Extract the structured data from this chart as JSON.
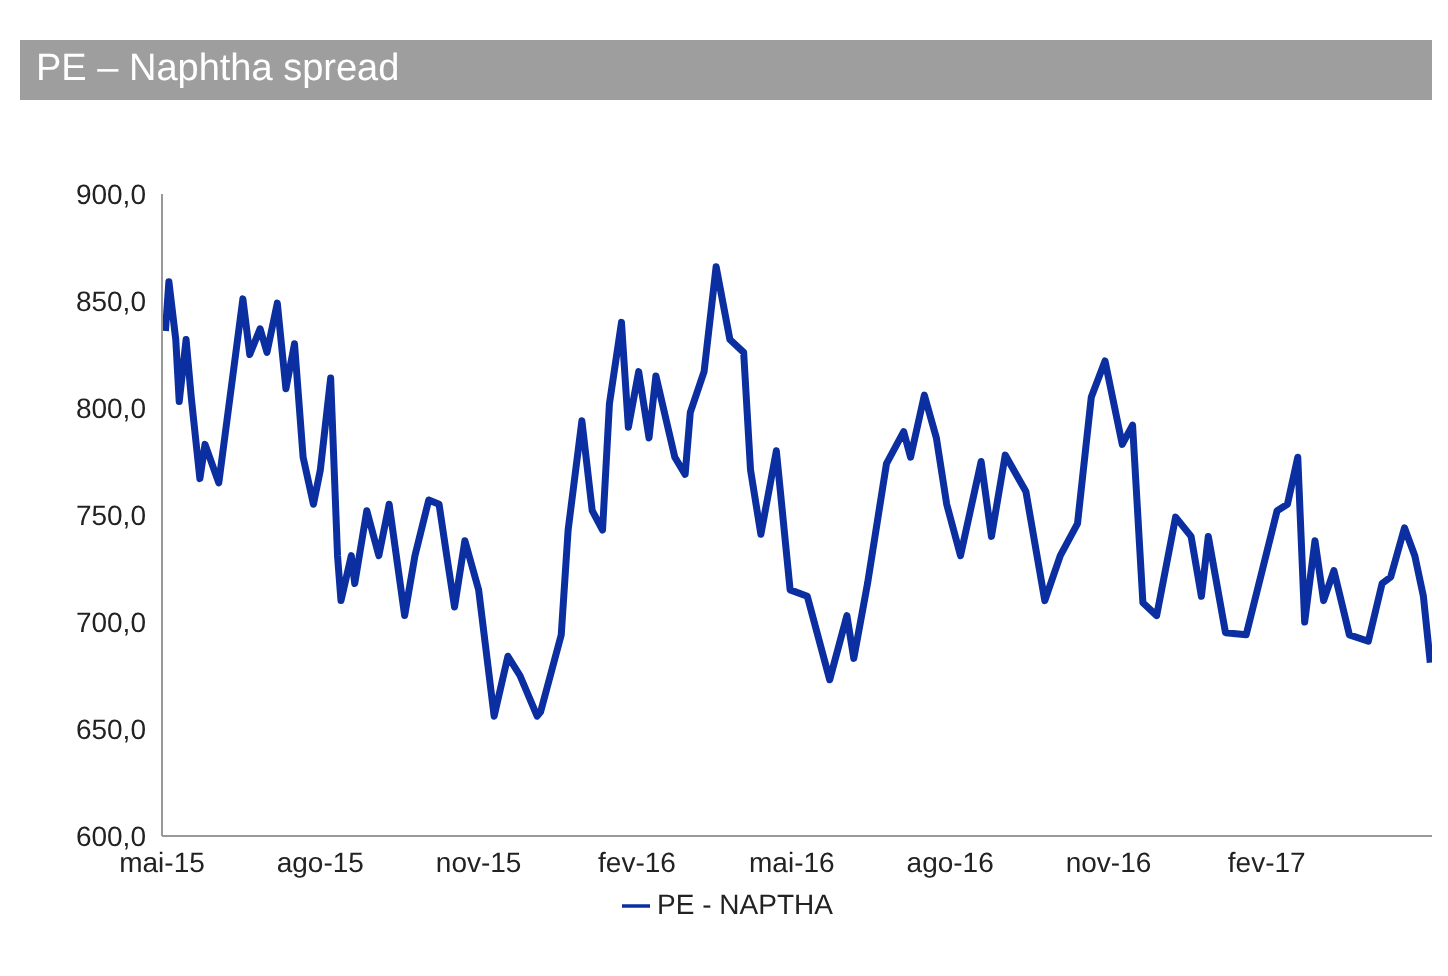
{
  "chart_data": {
    "type": "line",
    "title": "PE – Naphtha spread",
    "x": [
      "2015-05-03",
      "2015-05-05",
      "2015-05-09",
      "2015-05-11",
      "2015-05-15",
      "2015-05-18",
      "2015-05-23",
      "2015-05-26",
      "2015-06-03",
      "2015-06-17",
      "2015-06-21",
      "2015-06-27",
      "2015-07-01",
      "2015-07-07",
      "2015-07-12",
      "2015-07-17",
      "2015-07-22",
      "2015-07-28",
      "2015-08-01",
      "2015-08-07",
      "2015-08-11",
      "2015-08-13",
      "2015-08-19",
      "2015-08-21",
      "2015-08-28",
      "2015-09-04",
      "2015-09-10",
      "2015-09-19",
      "2015-09-25",
      "2015-10-03",
      "2015-10-09",
      "2015-10-14",
      "2015-10-18",
      "2015-10-24",
      "2015-11-01",
      "2015-11-10",
      "2015-11-18",
      "2015-11-25",
      "2015-12-05",
      "2015-12-07",
      "2015-12-19",
      "2015-12-23",
      "2015-12-31",
      "2016-01-06",
      "2016-01-12",
      "2016-01-16",
      "2016-01-23",
      "2016-01-27",
      "2016-02-02",
      "2016-02-08",
      "2016-02-12",
      "2016-02-23",
      "2016-02-29",
      "2016-03-03",
      "2016-03-11",
      "2016-03-18",
      "2016-03-26",
      "2016-04-03",
      "2016-04-07",
      "2016-04-13",
      "2016-04-22",
      "2016-04-30",
      "2016-05-10",
      "2016-05-23",
      "2016-06-02",
      "2016-06-06",
      "2016-06-14",
      "2016-06-25",
      "2016-07-05",
      "2016-07-09",
      "2016-07-17",
      "2016-07-24",
      "2016-07-30",
      "2016-08-07",
      "2016-08-19",
      "2016-08-25",
      "2016-09-02",
      "2016-09-14",
      "2016-09-25",
      "2016-10-04",
      "2016-10-14",
      "2016-10-22",
      "2016-10-30",
      "2016-11-09",
      "2016-11-15",
      "2016-11-21",
      "2016-11-29",
      "2016-12-10",
      "2016-12-19",
      "2016-12-25",
      "2016-12-29",
      "2017-01-08",
      "2017-01-20",
      "2017-02-07",
      "2017-02-13",
      "2017-02-19",
      "2017-02-23",
      "2017-03-01",
      "2017-03-06",
      "2017-03-12",
      "2017-03-21",
      "2017-04-01",
      "2017-04-09",
      "2017-04-14",
      "2017-04-22",
      "2017-04-28",
      "2017-05-03",
      "2017-05-07"
    ],
    "series": [
      {
        "name": "PE - NAPTHA",
        "color": "#0b2fa0",
        "values": [
          836,
          859,
          832,
          803,
          832,
          805,
          767,
          783,
          765,
          851,
          825,
          837,
          826,
          849,
          809,
          830,
          777,
          755,
          771,
          814,
          731,
          710,
          731,
          718,
          752,
          731,
          755,
          703,
          731,
          757,
          755,
          728,
          707,
          738,
          715,
          656,
          684,
          675,
          656,
          658,
          694,
          743,
          794,
          752,
          743,
          802,
          840,
          791,
          817,
          786,
          815,
          777,
          769,
          798,
          817,
          866,
          832,
          826,
          771,
          741,
          780,
          715,
          712,
          673,
          703,
          683,
          718,
          774,
          789,
          777,
          806,
          786,
          755,
          731,
          775,
          740,
          778,
          761,
          710,
          731,
          746,
          805,
          822,
          783,
          792,
          709,
          703,
          749,
          740,
          712,
          740,
          695,
          694,
          752,
          755,
          777,
          700,
          738,
          710,
          724,
          694,
          691,
          718,
          721,
          744,
          731,
          712,
          681
        ]
      }
    ],
    "xlim": [
      "2015-05-01",
      "2017-05-08"
    ],
    "xticks": [
      {
        "value": "2015-05-01",
        "label": "mai-15"
      },
      {
        "value": "2015-08-01",
        "label": "ago-15"
      },
      {
        "value": "2015-11-01",
        "label": "nov-15"
      },
      {
        "value": "2016-02-01",
        "label": "fev-16"
      },
      {
        "value": "2016-05-01",
        "label": "mai-16"
      },
      {
        "value": "2016-08-01",
        "label": "ago-16"
      },
      {
        "value": "2016-11-01",
        "label": "nov-16"
      },
      {
        "value": "2017-02-01",
        "label": "fev-17"
      }
    ],
    "ylim": [
      600,
      900
    ],
    "yticks": [
      {
        "value": 600,
        "label": "600,0"
      },
      {
        "value": 650,
        "label": "650,0"
      },
      {
        "value": 700,
        "label": "700,0"
      },
      {
        "value": 750,
        "label": "750,0"
      },
      {
        "value": 800,
        "label": "800,0"
      },
      {
        "value": 850,
        "label": "850,0"
      },
      {
        "value": 900,
        "label": "900,0"
      }
    ],
    "grid": false,
    "legend": "bottom",
    "marker": "none",
    "line_style": "solid"
  }
}
